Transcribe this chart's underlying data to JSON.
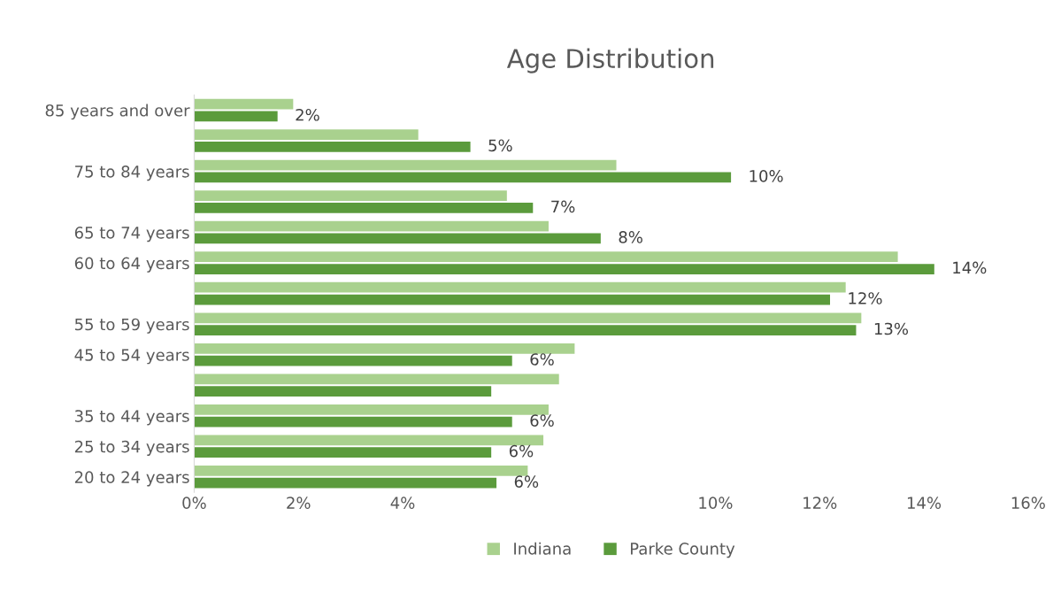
{
  "chart_data": {
    "type": "bar",
    "orientation": "horizontal",
    "title": "Age Distribution",
    "categories": [
      "85 years and over",
      null,
      "75 to 84 years",
      null,
      "65 to 74 years",
      "60 to 64 years",
      null,
      "55 to 59 years",
      "45 to 54 years",
      null,
      "35 to 44 years",
      "25 to 34 years",
      "20 to 24 years"
    ],
    "series": [
      {
        "name": "Indiana",
        "color": "#a9d18e",
        "values": [
          1.9,
          4.3,
          8.1,
          6.0,
          6.8,
          13.5,
          12.5,
          12.8,
          7.3,
          7.0,
          6.8,
          6.7,
          6.4
        ]
      },
      {
        "name": "Parke County",
        "color": "#5b9b3c",
        "values": [
          1.6,
          5.3,
          10.3,
          6.5,
          7.8,
          14.2,
          12.2,
          12.7,
          6.1,
          5.7,
          6.1,
          5.7,
          5.8
        ],
        "value_labels": [
          "2%",
          "5%",
          "10%",
          "7%",
          "8%",
          "14%",
          "12%",
          "13%",
          "6%",
          null,
          "6%",
          "6%",
          "6%"
        ]
      }
    ],
    "xlim": [
      0,
      16
    ],
    "xticks": [
      {
        "value": 0,
        "label": "0%"
      },
      {
        "value": 2,
        "label": "2%"
      },
      {
        "value": 4,
        "label": "4%"
      },
      {
        "value": 10,
        "label": "10%"
      },
      {
        "value": 12,
        "label": "12%"
      },
      {
        "value": 14,
        "label": "14%"
      },
      {
        "value": 16,
        "label": "16%"
      }
    ],
    "grid": false,
    "legend": "bottom"
  }
}
